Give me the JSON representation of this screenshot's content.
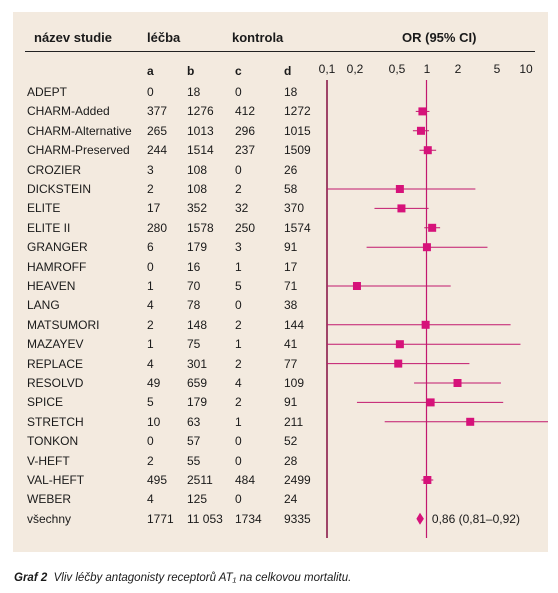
{
  "headers": {
    "study": "název studie",
    "treatment": "léčba",
    "control": "kontrola",
    "or": "OR (95% CI)"
  },
  "subheaders": [
    "a",
    "b",
    "c",
    "d"
  ],
  "axis_ticks": [
    "0,1",
    "0,2",
    "0,5",
    "1",
    "2",
    "5",
    "10"
  ],
  "studies": [
    {
      "name": "ADEPT",
      "a": "0",
      "b": "18",
      "c": "0",
      "d": "18"
    },
    {
      "name": "CHARM-Added",
      "a": "377",
      "b": "1276",
      "c": "412",
      "d": "1272"
    },
    {
      "name": "CHARM-Alternative",
      "a": "265",
      "b": "1013",
      "c": "296",
      "d": "1015"
    },
    {
      "name": "CHARM-Preserved",
      "a": "244",
      "b": "1514",
      "c": "237",
      "d": "1509"
    },
    {
      "name": "CROZIER",
      "a": "3",
      "b": "108",
      "c": "0",
      "d": "26"
    },
    {
      "name": "DICKSTEIN",
      "a": "2",
      "b": "108",
      "c": "2",
      "d": "58"
    },
    {
      "name": "ELITE",
      "a": "17",
      "b": "352",
      "c": "32",
      "d": "370"
    },
    {
      "name": "ELITE II",
      "a": "280",
      "b": "1578",
      "c": "250",
      "d": "1574"
    },
    {
      "name": "GRANGER",
      "a": "6",
      "b": "179",
      "c": "3",
      "d": "91"
    },
    {
      "name": "HAMROFF",
      "a": "0",
      "b": "16",
      "c": "1",
      "d": "17"
    },
    {
      "name": "HEAVEN",
      "a": "1",
      "b": "70",
      "c": "5",
      "d": "71"
    },
    {
      "name": "LANG",
      "a": "4",
      "b": "78",
      "c": "0",
      "d": "38"
    },
    {
      "name": "MATSUMORI",
      "a": "2",
      "b": "148",
      "c": "2",
      "d": "144"
    },
    {
      "name": "MAZAYEV",
      "a": "1",
      "b": "75",
      "c": "1",
      "d": "41"
    },
    {
      "name": "REPLACE",
      "a": "4",
      "b": "301",
      "c": "2",
      "d": "77"
    },
    {
      "name": "RESOLVD",
      "a": "49",
      "b": "659",
      "c": "4",
      "d": "109"
    },
    {
      "name": "SPICE",
      "a": "5",
      "b": "179",
      "c": "2",
      "d": "91"
    },
    {
      "name": "STRETCH",
      "a": "10",
      "b": "63",
      "c": "1",
      "d": "211"
    },
    {
      "name": "TONKON",
      "a": "0",
      "b": "57",
      "c": "0",
      "d": "52"
    },
    {
      "name": "V-HEFT",
      "a": "2",
      "b": "55",
      "c": "0",
      "d": "28"
    },
    {
      "name": "VAL-HEFT",
      "a": "495",
      "b": "2511",
      "c": "484",
      "d": "2499"
    },
    {
      "name": "WEBER",
      "a": "4",
      "b": "125",
      "c": "0",
      "d": "24"
    },
    {
      "name": "všechny",
      "a": "1771",
      "b": "11 053",
      "c": "1734",
      "d": "9335"
    }
  ],
  "caption": {
    "label": "Graf 2",
    "text": "Vliv léčby antagonisty receptorů AT₁ na celkovou mortalitu."
  },
  "chart_data": {
    "type": "forest",
    "scale": "log",
    "xlim": [
      0.1,
      10
    ],
    "ticks": [
      0.1,
      0.2,
      0.5,
      1,
      2,
      5,
      10
    ],
    "reference_line": 1,
    "colors": {
      "marker": "#d6127a",
      "line": "#c2186e",
      "axis": "#8a1a4a",
      "background": "#f3eadf"
    },
    "points": [
      {
        "study": "ADEPT",
        "or": null,
        "lo": null,
        "hi": null
      },
      {
        "study": "CHARM-Added",
        "or": 0.91,
        "lo": 0.78,
        "hi": 1.07
      },
      {
        "study": "CHARM-Alternative",
        "or": 0.88,
        "lo": 0.73,
        "hi": 1.06
      },
      {
        "study": "CHARM-Preserved",
        "or": 1.03,
        "lo": 0.85,
        "hi": 1.25
      },
      {
        "study": "CROZIER",
        "or": null,
        "lo": null,
        "hi": null
      },
      {
        "study": "DICKSTEIN",
        "or": 0.54,
        "lo": 0.1,
        "hi": 3.1
      },
      {
        "study": "ELITE",
        "or": 0.56,
        "lo": 0.3,
        "hi": 1.05
      },
      {
        "study": "ELITE II",
        "or": 1.14,
        "lo": 0.95,
        "hi": 1.37
      },
      {
        "study": "GRANGER",
        "or": 1.01,
        "lo": 0.25,
        "hi": 4.1
      },
      {
        "study": "HAMROFF",
        "or": null,
        "lo": null,
        "hi": null
      },
      {
        "study": "HEAVEN",
        "or": 0.2,
        "lo": 0.1,
        "hi": 1.75
      },
      {
        "study": "LANG",
        "or": null,
        "lo": null,
        "hi": null
      },
      {
        "study": "MATSUMORI",
        "or": 0.98,
        "lo": 0.1,
        "hi": 7.0
      },
      {
        "study": "MAZAYEV",
        "or": 0.54,
        "lo": 0.1,
        "hi": 8.8
      },
      {
        "study": "REPLACE",
        "or": 0.52,
        "lo": 0.1,
        "hi": 2.7
      },
      {
        "study": "RESOLVD",
        "or": 2.05,
        "lo": 0.75,
        "hi": 5.6
      },
      {
        "study": "SPICE",
        "or": 1.1,
        "lo": 0.2,
        "hi": 5.9
      },
      {
        "study": "STRETCH",
        "or": 2.75,
        "lo": 0.38,
        "hi": 20
      },
      {
        "study": "TONKON",
        "or": null,
        "lo": null,
        "hi": null
      },
      {
        "study": "V-HEFT",
        "or": null,
        "lo": null,
        "hi": null
      },
      {
        "study": "VAL-HEFT",
        "or": 1.02,
        "lo": 0.89,
        "hi": 1.17
      },
      {
        "study": "WEBER",
        "or": null,
        "lo": null,
        "hi": null
      }
    ],
    "pooled": {
      "or": 0.86,
      "lo": 0.81,
      "hi": 0.92,
      "label": "0,86 (0,81–0,92)"
    }
  }
}
